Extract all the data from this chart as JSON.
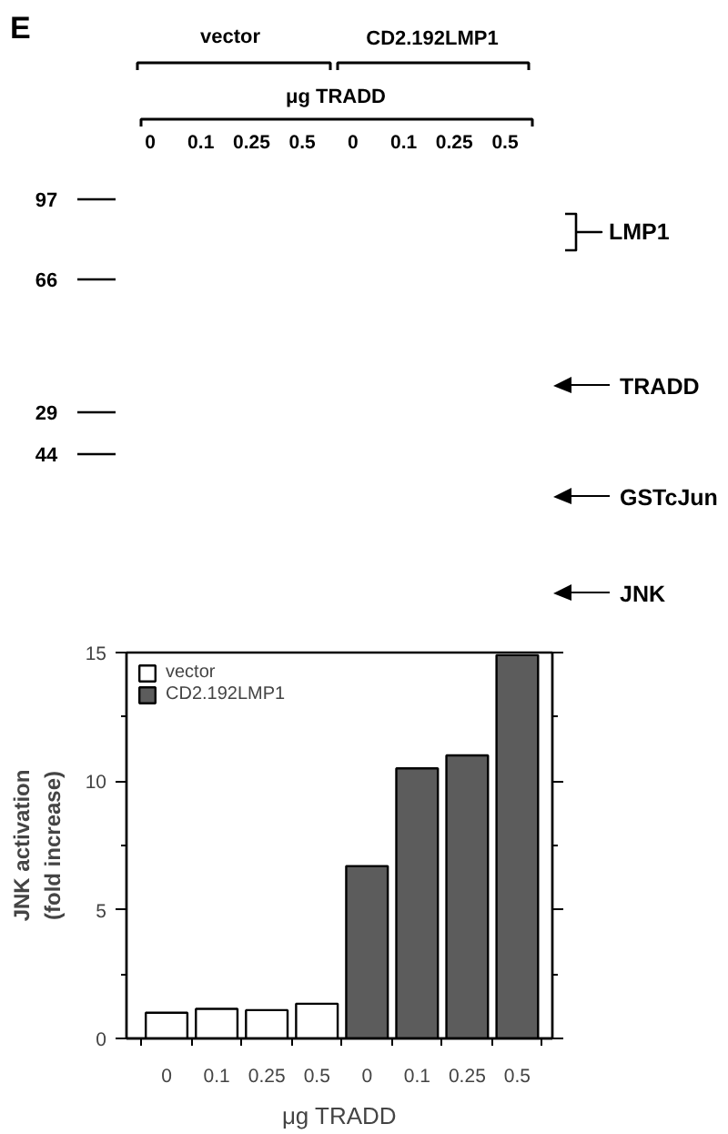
{
  "chart_data": [
    {
      "type": "other",
      "title": "E",
      "xlabel": "μg TRADD",
      "categories": [
        "0",
        "0.1",
        "0.25",
        "0.5",
        "0",
        "0.1",
        "0.25",
        "0.5"
      ],
      "annotations": [
        "vector",
        "CD2.192LMP1",
        "97",
        "66",
        "29",
        "44",
        "LMP1",
        "TRADD",
        "GSTcJun",
        "JNK"
      ]
    },
    {
      "type": "bar",
      "categories": [
        "0",
        "0.1",
        "0.25",
        "0.5",
        "0",
        "0.1",
        "0.25",
        "0.5"
      ],
      "xlabel": "μg TRADD",
      "ylabel": "JNK activation\n(fold increase)",
      "ylim": [
        0,
        15
      ],
      "yticks": [
        0,
        {
          "value": 2.5,
          "label": null
        },
        5,
        {
          "value": 7.5,
          "label": null
        },
        10,
        {
          "value": 12.5,
          "label": null
        },
        15
      ],
      "series": [
        {
          "name": "vector",
          "color": "#ffffff",
          "values": [
            1.0,
            1.15,
            1.1,
            1.35,
            null,
            null,
            null,
            null
          ]
        },
        {
          "name": "CD2.192LMP1",
          "color": "#5c5c5c",
          "values": [
            null,
            null,
            null,
            null,
            6.7,
            10.5,
            11.0,
            14.9
          ]
        }
      ],
      "legend": "top left",
      "grid": false
    }
  ]
}
